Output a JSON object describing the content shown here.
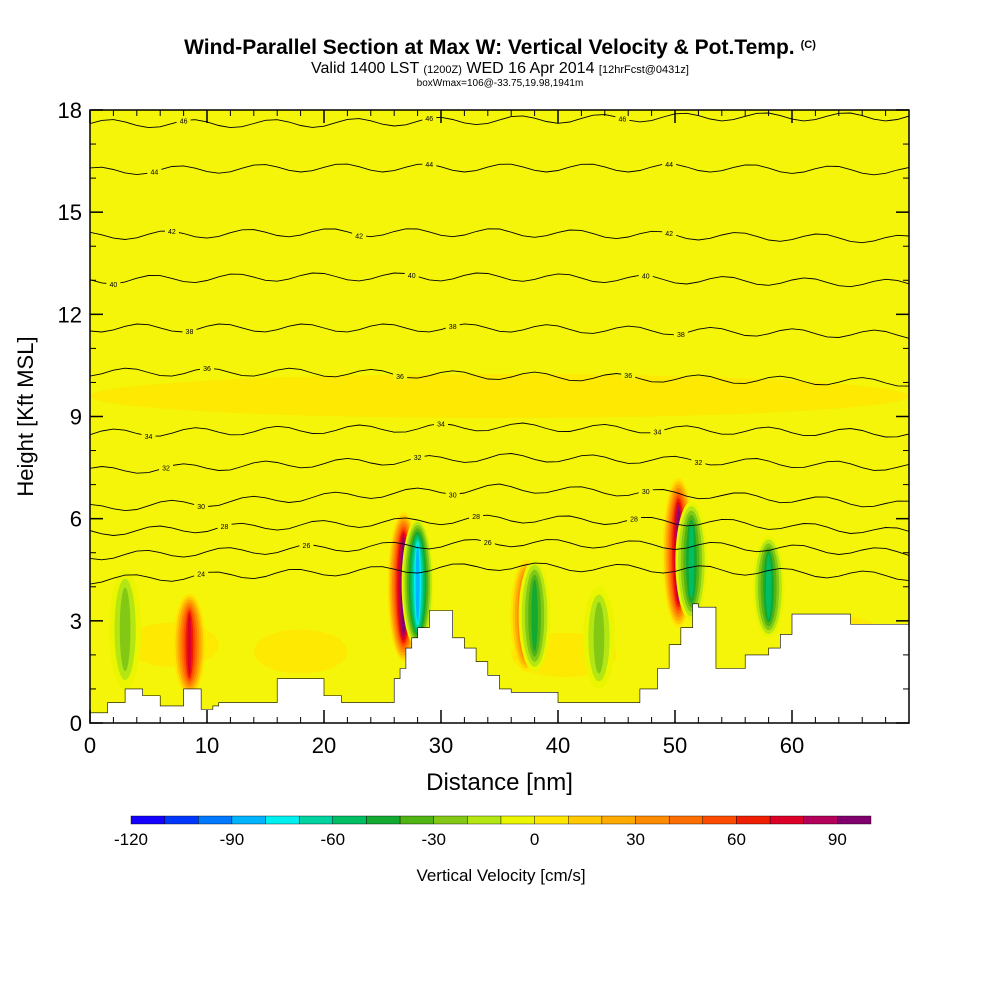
{
  "header": {
    "title": "Wind-Parallel Section at Max W: Vertical Velocity & Pot.Temp.",
    "copyright": "(C)",
    "valid_prefix": "Valid 1400 LST",
    "valid_utc": "(1200Z)",
    "valid_date": "WED 16 Apr 2014",
    "forecast": "[12hrFcst@0431z]",
    "box_info": "boxWmax=106@-33.75,19.98,1941m"
  },
  "colors": {
    "background": "#f5f50a",
    "terrain": "#ffffff",
    "contour": "#000000"
  },
  "chart_data": {
    "type": "heatmap",
    "title": "Wind-Parallel Section at Max W: Vertical Velocity & Pot.Temp.",
    "xlabel": "Distance [nm]",
    "ylabel": "Height [Kft MSL]",
    "xlim": [
      0,
      70
    ],
    "ylim": [
      0,
      18
    ],
    "x_ticks": [
      "0",
      "10",
      "20",
      "30",
      "40",
      "50",
      "60"
    ],
    "y_ticks": [
      "0",
      "3",
      "6",
      "9",
      "12",
      "15",
      "18"
    ],
    "colorbar": {
      "label": "Vertical Velocity [cm/s]",
      "min": -120,
      "max": 100,
      "step": 10,
      "tick_labels": [
        "-120",
        "-90",
        "-60",
        "-30",
        "0",
        "30",
        "60",
        "90"
      ],
      "colors": [
        "#1400ff",
        "#0037ff",
        "#0078ff",
        "#00b4ff",
        "#00f0f0",
        "#00d2a0",
        "#00be64",
        "#14aa32",
        "#50b414",
        "#82c814",
        "#b4e614",
        "#ebf500",
        "#ffe600",
        "#ffc800",
        "#ffaa00",
        "#ff8c00",
        "#ff6e00",
        "#ff4b00",
        "#f01e00",
        "#dc0028",
        "#b4005a",
        "#82006e"
      ]
    },
    "vertical_velocity_features": [
      {
        "x": 8.5,
        "z_bottom": 0.8,
        "z_top": 3.8,
        "w": 80
      },
      {
        "x": 26.8,
        "z_bottom": 1.8,
        "z_top": 6.2,
        "w": 106
      },
      {
        "x": 28.0,
        "z_bottom": 2.2,
        "z_top": 6.0,
        "w": -90
      },
      {
        "x": 37.3,
        "z_bottom": 1.5,
        "z_top": 4.8,
        "w": 70
      },
      {
        "x": 38.0,
        "z_bottom": 1.5,
        "z_top": 4.8,
        "w": -45
      },
      {
        "x": 50.3,
        "z_bottom": 2.8,
        "z_top": 7.2,
        "w": 95
      },
      {
        "x": 51.4,
        "z_bottom": 3.0,
        "z_top": 6.5,
        "w": -55
      },
      {
        "x": 58.0,
        "z_bottom": 2.5,
        "z_top": 5.5,
        "w": -55
      },
      {
        "x": 3.0,
        "z_bottom": 1.0,
        "z_top": 4.5,
        "w": -25
      },
      {
        "x": 43.5,
        "z_bottom": 1.0,
        "z_top": 4.0,
        "w": -30
      }
    ],
    "terrain_profile": {
      "x": [
        0,
        1.5,
        3,
        4.5,
        6,
        8,
        9.5,
        10.5,
        11,
        12,
        16,
        18,
        20,
        21.5,
        26,
        26.5,
        27,
        27.5,
        28,
        29,
        31,
        32,
        33,
        34,
        35,
        36,
        39,
        40,
        45,
        47,
        48.5,
        49.5,
        50.5,
        51.5,
        52,
        53.5,
        56,
        58,
        59,
        60,
        62,
        65,
        70
      ],
      "z": [
        0.3,
        0.6,
        1.0,
        0.8,
        0.5,
        1.0,
        0.4,
        0.5,
        0.6,
        0.6,
        1.3,
        1.3,
        0.8,
        0.6,
        1.3,
        1.6,
        2.2,
        2.5,
        2.8,
        3.3,
        2.5,
        2.2,
        1.8,
        1.4,
        1.0,
        0.9,
        0.9,
        0.6,
        0.6,
        1.0,
        1.6,
        2.3,
        2.8,
        3.5,
        3.4,
        1.6,
        2.0,
        2.2,
        2.6,
        3.2,
        3.2,
        2.9,
        2.9
      ]
    },
    "theta_contours": [
      {
        "label": "46",
        "z": [
          17.6,
          17.6,
          17.7,
          17.8,
          17.8
        ],
        "label_x": [
          8,
          29,
          45.5
        ]
      },
      {
        "label": "44",
        "z": [
          16.2,
          16.3,
          16.3,
          16.3,
          16.2
        ],
        "label_x": [
          5.5,
          29,
          49.5
        ]
      },
      {
        "label": "42",
        "z": [
          14.3,
          14.4,
          14.4,
          14.3,
          14.2
        ],
        "label_x": [
          7,
          23,
          49.5
        ]
      },
      {
        "label": "40",
        "z": [
          13.0,
          13.1,
          13.1,
          13.0,
          12.9
        ],
        "label_x": [
          2,
          27.5,
          47.5
        ]
      },
      {
        "label": "38",
        "z": [
          11.6,
          11.6,
          11.6,
          11.5,
          11.4
        ],
        "label_x": [
          8.5,
          31,
          50.5
        ]
      },
      {
        "label": "36",
        "z": [
          10.3,
          10.3,
          10.2,
          10.1,
          10.0
        ],
        "label_x": [
          10,
          26.5,
          46
        ]
      },
      {
        "label": "34",
        "z": [
          8.5,
          8.6,
          8.7,
          8.6,
          8.5
        ],
        "label_x": [
          5,
          30,
          48.5
        ]
      },
      {
        "label": "32",
        "z": [
          7.4,
          7.6,
          7.8,
          7.7,
          7.5
        ],
        "label_x": [
          6.5,
          28,
          52
        ]
      },
      {
        "label": "30",
        "z": [
          6.3,
          6.6,
          6.9,
          6.7,
          6.4
        ],
        "label_x": [
          9.5,
          31,
          47.5
        ]
      },
      {
        "label": "28",
        "z": [
          5.6,
          5.8,
          6.0,
          5.9,
          5.6
        ],
        "label_x": [
          11.5,
          33,
          46.5
        ]
      },
      {
        "label": "26",
        "z": [
          4.9,
          5.1,
          5.3,
          5.2,
          5.0
        ],
        "label_x": [
          18.5,
          34
        ]
      },
      {
        "label": "24",
        "z": [
          4.2,
          4.4,
          4.6,
          4.5,
          4.3
        ],
        "label_x": [
          9.5
        ]
      }
    ]
  }
}
